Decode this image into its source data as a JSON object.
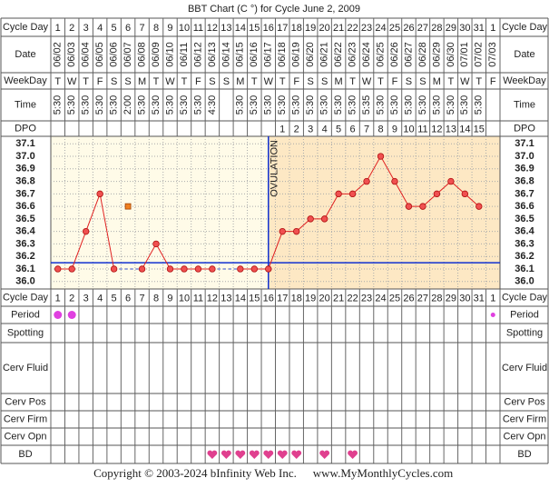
{
  "title": "BBT Chart (C °) for Cycle June 2, 2009",
  "row_labels": {
    "cycle_day": "Cycle Day",
    "date": "Date",
    "weekday": "WeekDay",
    "time": "Time",
    "dpo": "DPO",
    "period": "Period",
    "spotting": "Spotting",
    "cerv_fluid": "Cerv Fluid",
    "cerv_pos": "Cerv Pos",
    "cerv_firm": "Cerv Firm",
    "cerv_opn": "Cerv Opn",
    "bd": "BD"
  },
  "chart_data": {
    "type": "line",
    "categories": [
      1,
      2,
      3,
      4,
      5,
      6,
      7,
      8,
      9,
      10,
      11,
      12,
      13,
      14,
      15,
      16,
      17,
      18,
      19,
      20,
      21,
      22,
      23,
      24,
      25,
      26,
      27,
      28,
      29,
      30,
      31,
      1
    ],
    "dates": [
      "06/02",
      "06/03",
      "06/04",
      "06/05",
      "06/06",
      "06/07",
      "06/08",
      "06/09",
      "06/10",
      "06/11",
      "06/12",
      "06/13",
      "06/14",
      "06/15",
      "06/16",
      "06/17",
      "06/18",
      "06/19",
      "06/20",
      "06/21",
      "06/22",
      "06/23",
      "06/24",
      "06/25",
      "06/26",
      "06/27",
      "06/28",
      "06/29",
      "06/30",
      "07/01",
      "07/02",
      "07/03"
    ],
    "weekdays": [
      "T",
      "W",
      "T",
      "F",
      "S",
      "S",
      "M",
      "T",
      "W",
      "T",
      "F",
      "S",
      "S",
      "M",
      "T",
      "W",
      "T",
      "F",
      "S",
      "S",
      "M",
      "T",
      "W",
      "T",
      "F",
      "S",
      "S",
      "M",
      "T",
      "W",
      "T",
      "F"
    ],
    "times": [
      "5:30",
      "5:30",
      "5:30",
      "5:30",
      "5:30",
      "2:00",
      "5:30",
      "5:30",
      "5:30",
      "5:30",
      "5:30",
      "4:30",
      null,
      "5:30",
      "5:30",
      "5:30",
      "5:30",
      "5:30",
      "5:30",
      "5:30",
      "5:30",
      "5:30",
      "5:35",
      "5:30",
      "5:30",
      "5:30",
      "5:30",
      "5:30",
      "5:30",
      "5:30",
      "5:30",
      null
    ],
    "dpo": [
      null,
      null,
      null,
      null,
      null,
      null,
      null,
      null,
      null,
      null,
      null,
      null,
      null,
      null,
      null,
      null,
      1,
      2,
      3,
      4,
      5,
      6,
      7,
      8,
      9,
      10,
      11,
      12,
      13,
      14,
      15,
      null
    ],
    "series": [
      {
        "color": "#e02020",
        "values": [
          36.1,
          36.1,
          36.4,
          36.7,
          36.1,
          null,
          36.1,
          36.3,
          36.1,
          36.1,
          36.1,
          36.1,
          null,
          36.1,
          36.1,
          36.1,
          36.4,
          36.4,
          36.5,
          36.5,
          36.7,
          36.7,
          36.8,
          37.0,
          36.8,
          36.6,
          36.6,
          36.7,
          36.8,
          36.7,
          36.6,
          null
        ]
      }
    ],
    "excluded_values": [
      null,
      null,
      null,
      null,
      null,
      36.6,
      null,
      null,
      null,
      null,
      null,
      null,
      null,
      null,
      null,
      null,
      null,
      null,
      null,
      null,
      null,
      null,
      null,
      null,
      null,
      null,
      null,
      null,
      null,
      null,
      null,
      null
    ],
    "excluded_color": "#f08020",
    "ylim": [
      35.94,
      37.16
    ],
    "yticks": [
      {
        "value": 37.1,
        "label": "37.1"
      },
      {
        "value": 37,
        "label": "37.0"
      },
      36.9,
      36.8,
      36.7,
      36.6,
      36.5,
      36.4,
      36.3,
      36.2,
      36.1,
      {
        "value": 36,
        "label": "36.0"
      }
    ],
    "grid": true,
    "coverline": 36.15,
    "ovulation_day": 16,
    "ovulation_label": "OVULATION",
    "period": [
      "heavy",
      "heavy",
      null,
      null,
      null,
      null,
      null,
      null,
      null,
      null,
      null,
      null,
      null,
      null,
      null,
      null,
      null,
      null,
      null,
      null,
      null,
      null,
      null,
      null,
      null,
      null,
      null,
      null,
      null,
      null,
      null,
      "light"
    ],
    "bd": [
      false,
      false,
      false,
      false,
      false,
      false,
      false,
      false,
      false,
      false,
      false,
      true,
      true,
      true,
      true,
      true,
      true,
      true,
      false,
      true,
      false,
      true,
      false,
      false,
      false,
      false,
      false,
      false,
      false,
      false,
      false,
      false
    ]
  },
  "footer": {
    "copyright": "Copyright © 2003-2024 bInfinity Web Inc.",
    "site": "www.MyMonthlyCycles.com"
  }
}
